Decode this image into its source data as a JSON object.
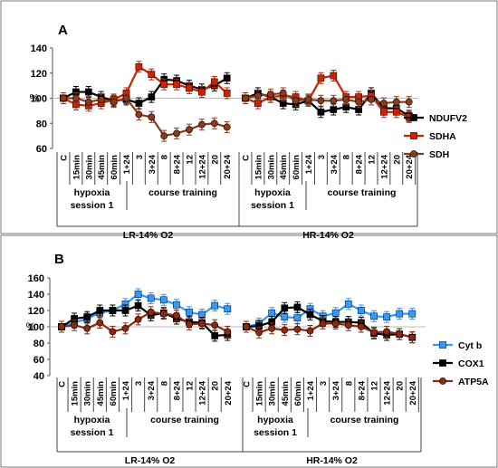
{
  "chart_data": [
    {
      "panel": "A",
      "type": "line",
      "ylabel": "%",
      "ylim": [
        60,
        140
      ],
      "yticks": [
        60,
        80,
        100,
        120,
        140
      ],
      "categories": [
        "C",
        "15min",
        "30min",
        "45min",
        "60min",
        "1+24",
        "3",
        "3+24",
        "8",
        "8+24",
        "12",
        "12+24",
        "20",
        "20+24",
        "C",
        "15min",
        "30min",
        "45min",
        "60min",
        "1+24",
        "3",
        "3+24",
        "8",
        "8+24",
        "12",
        "12+24",
        "20",
        "20+24"
      ],
      "group_labels": {
        "hypoxia_line1": "hypoxia",
        "hypoxia_line2": "session 1",
        "course": "course training",
        "lr": "LR-14% O2",
        "hr": "HR-14% O2"
      },
      "series": [
        {
          "name": "NDUFV2",
          "color": "#000000",
          "marker": "square",
          "values": [
            100,
            105,
            105,
            101,
            98,
            99,
            96,
            101,
            115,
            114,
            110,
            107,
            110,
            116,
            100,
            104,
            101,
            96,
            95,
            98,
            89,
            91,
            93,
            91,
            104,
            92,
            92,
            86
          ]
        },
        {
          "name": "SDHA",
          "color": "#cc2200",
          "marker": "square",
          "values": [
            100,
            95,
            94,
            96,
            99,
            104,
            125,
            119,
            111,
            111,
            108,
            105,
            113,
            104,
            100,
            96,
            101,
            102,
            101,
            98,
            116,
            118,
            101,
            101,
            102,
            89,
            89,
            85
          ]
        },
        {
          "name": "SDH",
          "color": "#8b3a1a",
          "marker": "circle",
          "values": [
            100,
            100,
            97,
            99,
            97,
            100,
            87,
            85,
            70,
            72,
            75,
            79,
            80,
            77,
            100,
            102,
            103,
            104,
            98,
            99,
            98,
            98,
            99,
            97,
            99,
            96,
            97,
            97
          ]
        }
      ]
    },
    {
      "panel": "B",
      "type": "line",
      "ylabel": "%",
      "ylim": [
        40,
        160
      ],
      "yticks": [
        40,
        60,
        80,
        100,
        120,
        140,
        160
      ],
      "categories": [
        "C",
        "15min",
        "30min",
        "45min",
        "60min",
        "1+24",
        "3",
        "3+24",
        "8",
        "8+24",
        "12",
        "12+24",
        "20",
        "20+24",
        "C",
        "15min",
        "30min",
        "45min",
        "60min",
        "1+24",
        "3",
        "3+24",
        "8",
        "8+24",
        "12",
        "12+24",
        "20",
        "20+24"
      ],
      "group_labels": {
        "hypoxia_line1": "hypoxia",
        "hypoxia_line2": "session 1",
        "course": "course training",
        "lr": "LR-14% O2",
        "hr": "HR-14% O2"
      },
      "series": [
        {
          "name": "Cyt b",
          "color": "#3399ff",
          "marker": "square",
          "values": [
            100,
            105,
            110,
            117,
            120,
            128,
            140,
            135,
            133,
            127,
            118,
            115,
            126,
            122,
            100,
            104,
            117,
            112,
            111,
            122,
            113,
            117,
            128,
            120,
            113,
            112,
            116,
            116
          ]
        },
        {
          "name": "COX1",
          "color": "#000000",
          "marker": "square",
          "values": [
            100,
            110,
            112,
            120,
            120,
            120,
            126,
            114,
            117,
            110,
            106,
            105,
            89,
            90,
            100,
            101,
            106,
            123,
            124,
            115,
            107,
            106,
            106,
            105,
            92,
            90,
            91,
            87
          ]
        },
        {
          "name": "ATP5A",
          "color": "#8b2a10",
          "marker": "circle",
          "values": [
            100,
            102,
            98,
            105,
            94,
            98,
            109,
            118,
            116,
            114,
            103,
            104,
            102,
            94,
            100,
            93,
            98,
            96,
            97,
            95,
            104,
            104,
            102,
            100,
            93,
            94,
            91,
            87
          ]
        }
      ]
    }
  ]
}
